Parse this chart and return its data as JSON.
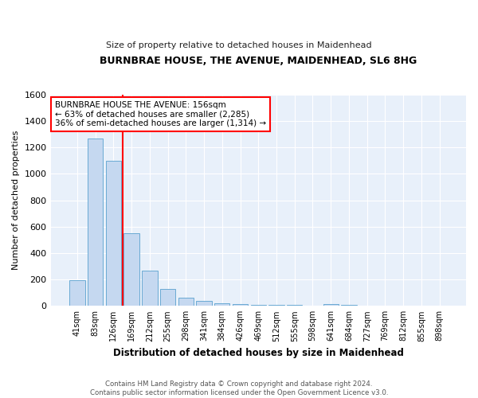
{
  "title": "BURNBRAE HOUSE, THE AVENUE, MAIDENHEAD, SL6 8HG",
  "subtitle": "Size of property relative to detached houses in Maidenhead",
  "xlabel": "Distribution of detached houses by size in Maidenhead",
  "ylabel": "Number of detached properties",
  "footer_line1": "Contains HM Land Registry data © Crown copyright and database right 2024.",
  "footer_line2": "Contains public sector information licensed under the Open Government Licence v3.0.",
  "categories": [
    "41sqm",
    "83sqm",
    "126sqm",
    "169sqm",
    "212sqm",
    "255sqm",
    "298sqm",
    "341sqm",
    "384sqm",
    "426sqm",
    "469sqm",
    "512sqm",
    "555sqm",
    "598sqm",
    "641sqm",
    "684sqm",
    "727sqm",
    "769sqm",
    "812sqm",
    "855sqm",
    "898sqm"
  ],
  "values": [
    195,
    1270,
    1100,
    550,
    270,
    130,
    60,
    35,
    20,
    15,
    10,
    8,
    5,
    3,
    15,
    5,
    0,
    0,
    0,
    0,
    0
  ],
  "bar_color": "#c5d8f0",
  "bar_edge_color": "#6aaad4",
  "plot_bg_color": "#e8f0fa",
  "fig_bg_color": "#ffffff",
  "grid_color": "#ffffff",
  "vline_x": 2.5,
  "vline_color": "red",
  "annotation_text": "BURNBRAE HOUSE THE AVENUE: 156sqm\n← 63% of detached houses are smaller (2,285)\n36% of semi-detached houses are larger (1,314) →",
  "annotation_box_color": "white",
  "annotation_box_edge_color": "red",
  "ylim": [
    0,
    1600
  ],
  "yticks": [
    0,
    200,
    400,
    600,
    800,
    1000,
    1200,
    1400,
    1600
  ]
}
